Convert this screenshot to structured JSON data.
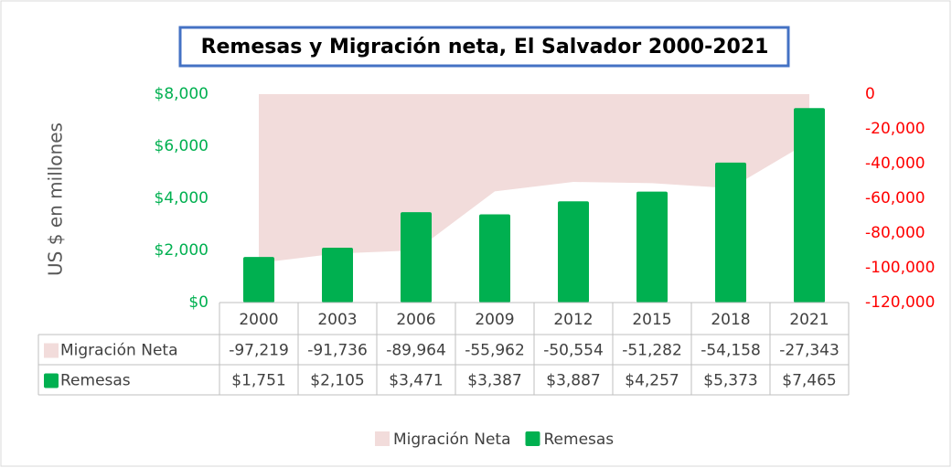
{
  "chart_data": {
    "type": "bar",
    "title": "Remesas y Migración neta, El Salvador 2000-2021",
    "y_axis_label": "US $ en millones",
    "categories": [
      "2000",
      "2003",
      "2006",
      "2009",
      "2012",
      "2015",
      "2018",
      "2021"
    ],
    "series": [
      {
        "name": "Migración Neta",
        "type": "area",
        "axis": "y2",
        "color": "#f2dcdb",
        "values": [
          -97219,
          -91736,
          -89964,
          -55962,
          -50554,
          -51282,
          -54158,
          -27343
        ],
        "value_labels": [
          "-97,219",
          "-91,736",
          "-89,964",
          "-55,962",
          "-50,554",
          "-51,282",
          "-54,158",
          "-27,343"
        ]
      },
      {
        "name": "Remesas",
        "type": "bar",
        "color": "#00b050",
        "values": [
          1751,
          2105,
          3471,
          3387,
          3887,
          4257,
          5373,
          7465
        ],
        "value_labels": [
          "$1,751",
          "$2,105",
          "$3,471",
          "$3,387",
          "$3,887",
          "$4,257",
          "$5,373",
          "$7,465"
        ]
      }
    ],
    "ylim": [
      0,
      8000
    ],
    "yticks": [
      {
        "value": 0,
        "label": "$0"
      },
      {
        "value": 2000,
        "label": "$2,000"
      },
      {
        "value": 4000,
        "label": "$4,000"
      },
      {
        "value": 6000,
        "label": "$6,000"
      },
      {
        "value": 8000,
        "label": "$8,000"
      }
    ],
    "y2lim": [
      -120000,
      0
    ],
    "y2ticks": [
      {
        "value": -120000,
        "label": "-120,000"
      },
      {
        "value": -100000,
        "label": "-100,000"
      },
      {
        "value": -80000,
        "label": "-80,000"
      },
      {
        "value": -60000,
        "label": "-60,000"
      },
      {
        "value": -40000,
        "label": "-40,000"
      },
      {
        "value": -20000,
        "label": "-20,000"
      },
      0
    ],
    "ytick_color": "#00b050",
    "y2tick_color": "#ff0000",
    "grid": false,
    "legend": "bottom"
  }
}
